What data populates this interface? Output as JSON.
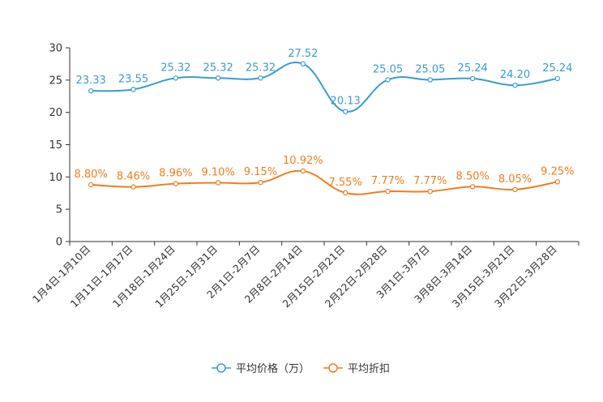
{
  "chart_data": {
    "type": "line",
    "title": "",
    "xlabel": "",
    "ylabel": "",
    "ylim": [
      0,
      30
    ],
    "yticks": [
      0,
      5,
      10,
      15,
      20,
      25,
      30
    ],
    "grid": false,
    "legend_position": "bottom",
    "categories": [
      "1月4日-1月10日",
      "1月11日-1月17日",
      "1月18日-1月24日",
      "1月25日-1月31日",
      "2月1日-2月7日",
      "2月8日-2月14日",
      "2月15日-2月21日",
      "2月22日-2月28日",
      "3月1日-3月7日",
      "3月8日-3月14日",
      "3月15日-3月21日",
      "3月22日-3月28日"
    ],
    "series": [
      {
        "name": "平均价格（万）",
        "color": "#3b9bd0",
        "values": [
          23.33,
          23.55,
          25.32,
          25.32,
          25.32,
          27.52,
          20.13,
          25.05,
          25.05,
          25.24,
          24.2,
          25.24
        ],
        "labels": [
          "23.33",
          "23.55",
          "25.32",
          "25.32",
          "25.32",
          "27.52",
          "20.13",
          "25.05",
          "25.05",
          "25.24",
          "24.20",
          "25.24"
        ]
      },
      {
        "name": "平均折扣",
        "color": "#f07d1e",
        "values": [
          8.8,
          8.46,
          8.96,
          9.1,
          9.15,
          10.92,
          7.55,
          7.77,
          7.77,
          8.5,
          8.05,
          9.25
        ],
        "labels": [
          "8.80%",
          "8.46%",
          "8.96%",
          "9.10%",
          "9.15%",
          "10.92%",
          "7.55%",
          "7.77%",
          "7.77%",
          "8.50%",
          "8.05%",
          "9.25%"
        ]
      }
    ]
  }
}
